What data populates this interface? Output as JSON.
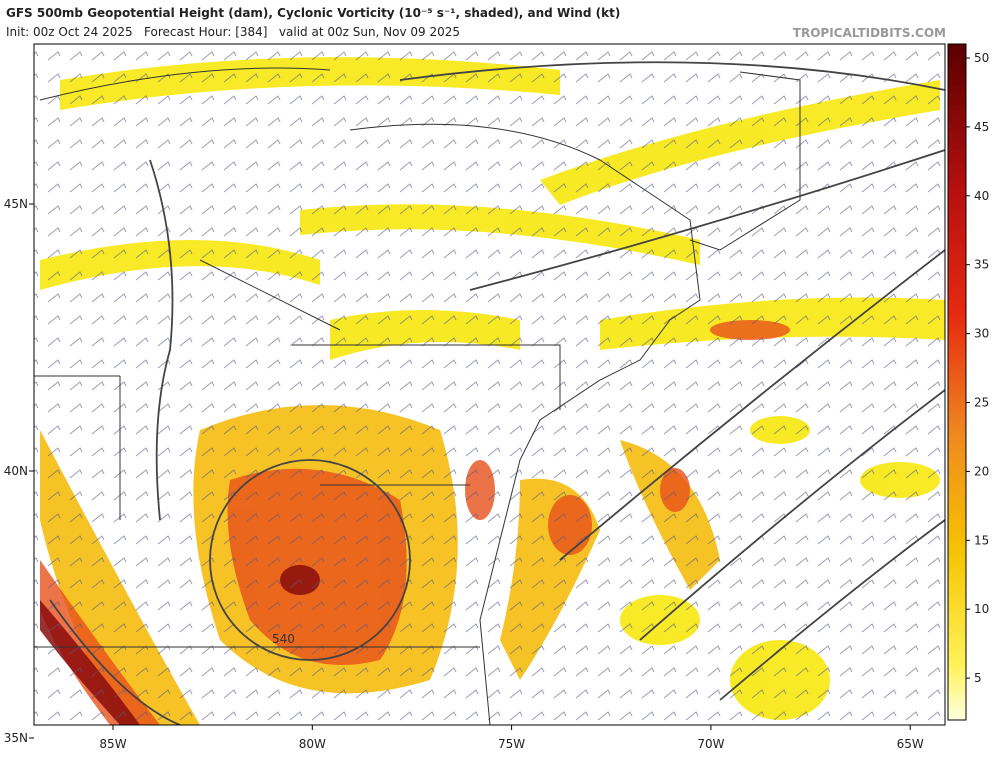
{
  "header": {
    "title": "GFS 500mb Geopotential Height (dam), Cyclonic Vorticity (10⁻⁵ s⁻¹, shaded), and Wind (kt)",
    "subtitle": "Init: 00z Oct 24 2025   Forecast Hour: [384]   valid at 00z Sun, Nov 09 2025",
    "brand": "TROPICALTIDBITS.COM"
  },
  "map": {
    "x_labels": [
      "85W",
      "80W",
      "75W",
      "70W",
      "65W"
    ],
    "y_labels": [
      "45N",
      "40N",
      "35N"
    ],
    "contour_label": "540"
  },
  "colorbar": {
    "ticks": [
      5,
      10,
      15,
      20,
      25,
      30,
      35,
      40,
      45,
      50
    ]
  }
}
